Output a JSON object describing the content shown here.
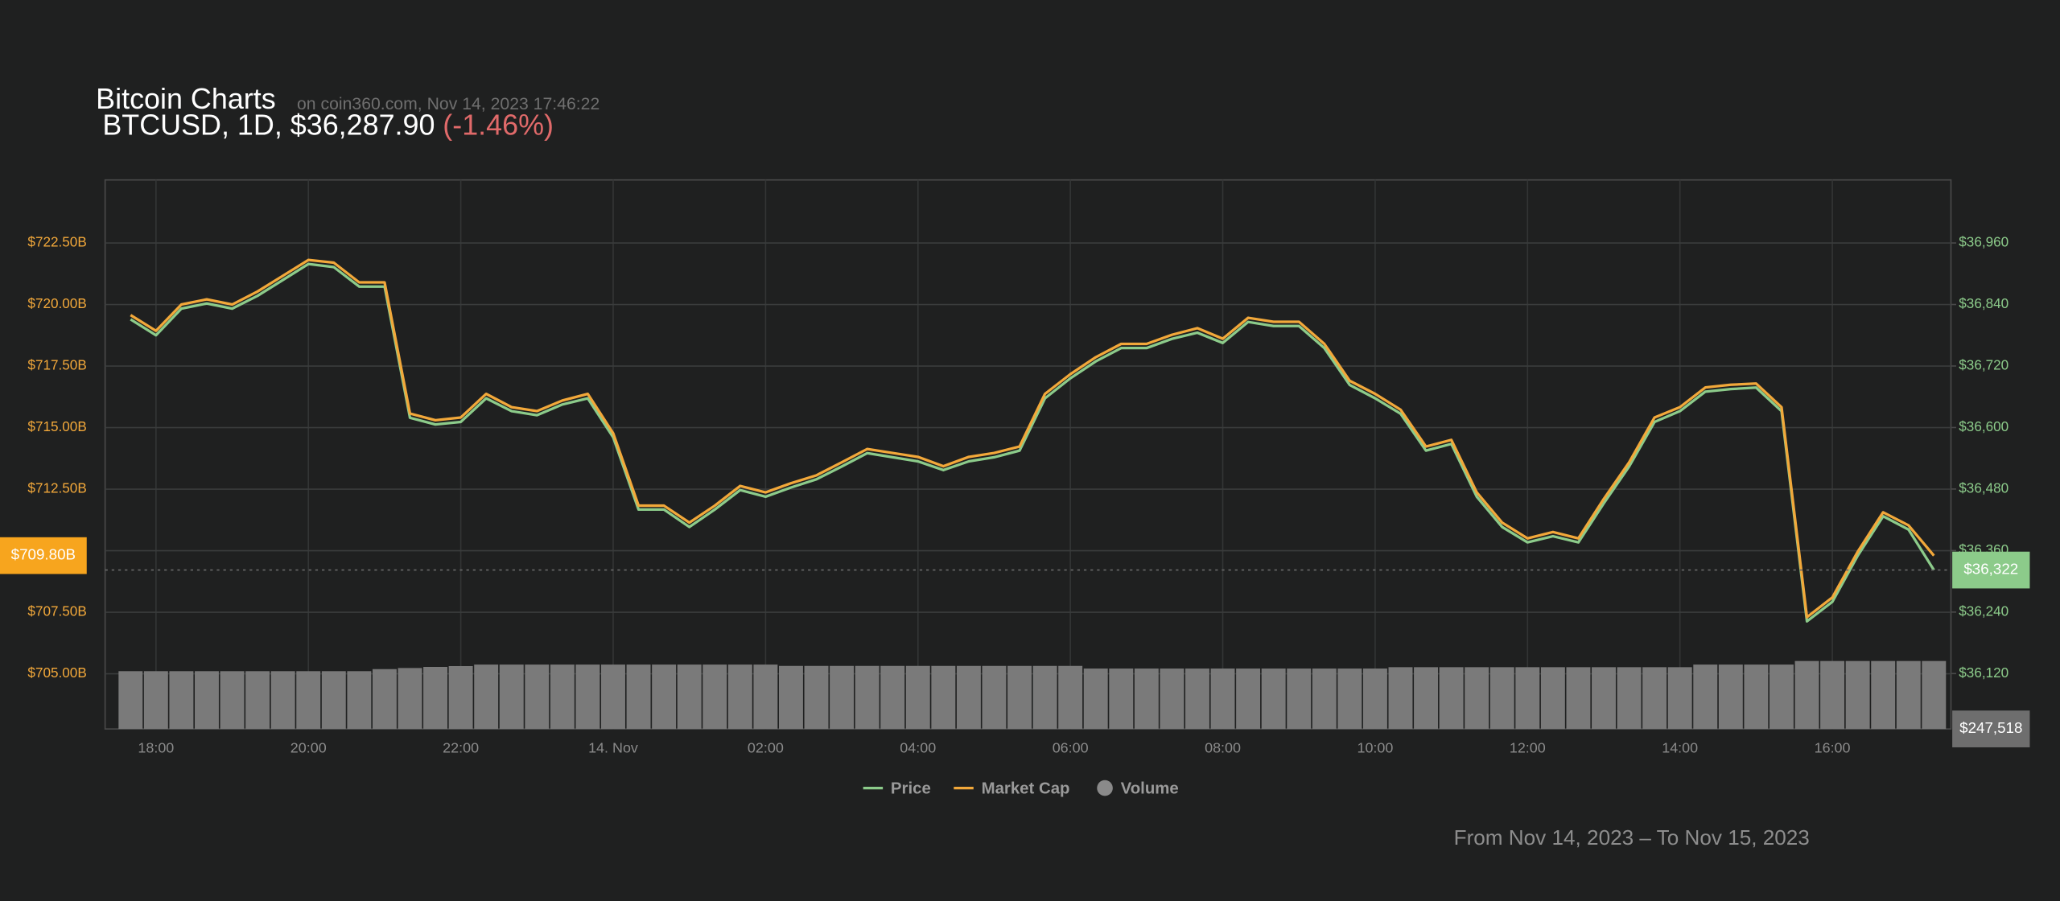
{
  "chart_data": {
    "type": "line",
    "title": "Bitcoin Charts",
    "subtitle": "on coin360.com, Nov 14, 2023 17:46:22",
    "symbol_line": "BTCUSD, 1D, $36,287.90",
    "change": "(-1.46%)",
    "date_range": "From Nov 14, 2023 – To Nov 15, 2023",
    "categories": [
      "17:40",
      "18:00",
      "18:20",
      "18:40",
      "19:00",
      "19:20",
      "19:40",
      "20:00",
      "20:20",
      "20:40",
      "21:00",
      "21:20",
      "21:40",
      "22:00",
      "22:20",
      "22:40",
      "23:00",
      "23:20",
      "23:40",
      "00:00",
      "00:20",
      "00:40",
      "01:00",
      "01:20",
      "01:40",
      "02:00",
      "02:20",
      "02:40",
      "03:00",
      "03:20",
      "03:40",
      "04:00",
      "04:20",
      "04:40",
      "05:00",
      "05:20",
      "05:40",
      "06:00",
      "06:20",
      "06:40",
      "07:00",
      "07:20",
      "07:40",
      "08:00",
      "08:20",
      "08:40",
      "09:00",
      "09:20",
      "09:40",
      "10:00",
      "10:20",
      "10:40",
      "11:00",
      "11:20",
      "11:40",
      "12:00",
      "12:20",
      "12:40",
      "13:00",
      "13:20",
      "13:40",
      "14:00",
      "14:20",
      "14:40",
      "15:00",
      "15:20",
      "15:40",
      "16:00",
      "16:20",
      "16:40",
      "17:00",
      "17:20"
    ],
    "xticks": [
      "18:00",
      "20:00",
      "22:00",
      {
        "value": "00:00",
        "label": "14. Nov"
      },
      "02:00",
      "04:00",
      "06:00",
      "08:00",
      "10:00",
      "12:00",
      "14:00",
      "16:00"
    ],
    "series": [
      {
        "name": "Price",
        "color": "#8ccb8a",
        "axis": "y2",
        "kind": "line",
        "values": [
          36811,
          36780,
          36832,
          36842,
          36832,
          36857,
          36888,
          36919,
          36913,
          36875,
          36875,
          36619,
          36606,
          36611,
          36657,
          36632,
          36624,
          36645,
          36657,
          36581,
          36440,
          36440,
          36406,
          36440,
          36478,
          36465,
          36483,
          36499,
          36524,
          36550,
          36542,
          36534,
          36517,
          36534,
          36542,
          36555,
          36657,
          36696,
          36729,
          36755,
          36755,
          36773,
          36785,
          36765,
          36806,
          36798,
          36798,
          36755,
          36683,
          36657,
          36627,
          36555,
          36568,
          36465,
          36406,
          36376,
          36388,
          36376,
          36452,
          36524,
          36611,
          36632,
          36670,
          36675,
          36678,
          36632,
          36222,
          36260,
          36350,
          36427,
          36401,
          36322
        ]
      },
      {
        "name": "Market Cap",
        "color": "#f2a83a",
        "axis": "y",
        "kind": "line",
        "values": [
          719.57,
          718.93,
          720.0,
          720.21,
          720.0,
          720.53,
          721.17,
          721.81,
          721.7,
          720.9,
          720.9,
          715.57,
          715.3,
          715.41,
          716.37,
          715.83,
          715.67,
          716.1,
          716.37,
          714.77,
          711.83,
          711.83,
          711.14,
          711.83,
          712.63,
          712.37,
          712.74,
          713.06,
          713.59,
          714.13,
          713.97,
          713.81,
          713.43,
          713.81,
          713.97,
          714.23,
          716.37,
          717.17,
          717.86,
          718.4,
          718.4,
          718.77,
          719.04,
          718.61,
          719.46,
          719.3,
          719.3,
          718.4,
          716.9,
          716.37,
          715.73,
          714.23,
          714.5,
          712.37,
          711.14,
          710.5,
          710.76,
          710.5,
          712.1,
          713.59,
          715.41,
          715.83,
          716.63,
          716.74,
          716.79,
          715.83,
          707.3,
          708.1,
          709.96,
          711.56,
          711.03,
          709.8
        ]
      },
      {
        "name": "Volume",
        "color": "#7a7a7a",
        "axis": "y3",
        "kind": "bar",
        "values": [
          210500,
          210500,
          210500,
          210500,
          210500,
          210500,
          210500,
          210500,
          210500,
          210500,
          218000,
          222000,
          226000,
          229000,
          234500,
          234500,
          234500,
          234500,
          234500,
          234500,
          234500,
          234500,
          234500,
          234500,
          234500,
          234500,
          229700,
          229700,
          229700,
          229700,
          229700,
          229700,
          229700,
          229700,
          229700,
          229700,
          229700,
          229700,
          220100,
          220100,
          220100,
          220100,
          220100,
          220100,
          220100,
          220100,
          220100,
          220100,
          220100,
          220100,
          225000,
          225000,
          225000,
          225000,
          225000,
          225000,
          225000,
          225000,
          225000,
          225000,
          225000,
          225000,
          234500,
          234500,
          234500,
          234500,
          247518,
          247518,
          247518,
          247518,
          247518,
          247518
        ]
      }
    ],
    "ylim": [
      702.76,
      725.06
    ],
    "yticks": [
      {
        "value": 705.0,
        "label": "$705.00B"
      },
      {
        "value": 707.5,
        "label": "$707.50B"
      },
      {
        "value": 710.0,
        "label": "$710.00B"
      },
      {
        "value": 712.5,
        "label": "$712.50B"
      },
      {
        "value": 715.0,
        "label": "$715.00B"
      },
      {
        "value": 717.5,
        "label": "$717.50B"
      },
      {
        "value": 720.0,
        "label": "$720.00B"
      },
      {
        "value": 722.5,
        "label": "$722.50B"
      }
    ],
    "y2lim": [
      36012,
      37083
    ],
    "y2ticks": [
      {
        "value": 36120,
        "label": "$36,120"
      },
      {
        "value": 36240,
        "label": "$36,240"
      },
      {
        "value": 36360,
        "label": "$36,360"
      },
      {
        "value": 36480,
        "label": "$36,480"
      },
      {
        "value": 36600,
        "label": "$36,600"
      },
      {
        "value": 36720,
        "label": "$36,720"
      },
      {
        "value": 36840,
        "label": "$36,840"
      },
      {
        "value": 36960,
        "label": "$36,960"
      }
    ],
    "y3lim": [
      0,
      2000000
    ],
    "y_badge": {
      "value": 709.8,
      "label": "$709.80B"
    },
    "y2_badge": {
      "value": 36322,
      "label": "$36,322"
    },
    "y3_badge": {
      "value": 247518,
      "label": "$247,518"
    },
    "grid": true
  }
}
